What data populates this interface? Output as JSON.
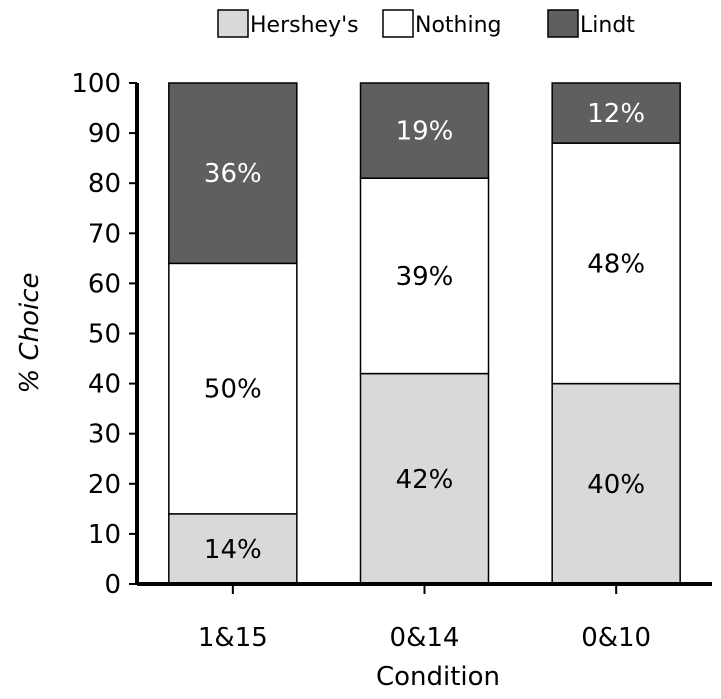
{
  "chart_data": {
    "type": "bar",
    "stacked": true,
    "categories": [
      "1&15",
      "0&14",
      "0&10"
    ],
    "series": [
      {
        "name": "Hershey's",
        "values": [
          14,
          42,
          40
        ],
        "labels": [
          "14%",
          "42%",
          "40%"
        ],
        "color": "#d9d9d9",
        "label_color": "#000000"
      },
      {
        "name": "Nothing",
        "values": [
          50,
          39,
          48
        ],
        "labels": [
          "50%",
          "39%",
          "48%"
        ],
        "color": "#ffffff",
        "label_color": "#000000"
      },
      {
        "name": "Lindt",
        "values": [
          36,
          19,
          12
        ],
        "labels": [
          "36%",
          "19%",
          "12%"
        ],
        "color": "#5f5f5f",
        "label_color": "#ffffff"
      }
    ],
    "xlabel": "Condition",
    "ylabel": "% Choice",
    "ylim": [
      0,
      100
    ],
    "yticks": [
      0,
      10,
      20,
      30,
      40,
      50,
      60,
      70,
      80,
      90,
      100
    ],
    "grid": false,
    "legend": "top"
  }
}
